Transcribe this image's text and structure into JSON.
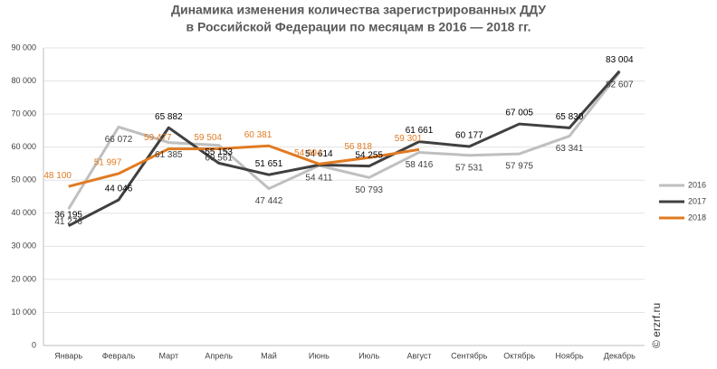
{
  "chart_data": {
    "type": "line",
    "title": "Динамика изменения количества зарегистрированных ДДУ",
    "subtitle": "в Российской Федерации по месяцам в 2016 — 2018 гг.",
    "source": "© erzrf.ru",
    "categories": [
      "Январь",
      "Февраль",
      "Март",
      "Апрель",
      "Май",
      "Июнь",
      "Июль",
      "Август",
      "Сентябрь",
      "Октябрь",
      "Ноябрь",
      "Декабрь"
    ],
    "series": [
      {
        "name": "2016",
        "color": "#bfbfbf",
        "label_color": "#404040",
        "values": [
          41276,
          66072,
          61385,
          60561,
          47442,
          54411,
          50793,
          58416,
          57531,
          57975,
          63341,
          82607
        ],
        "value_labels": [
          "41 276",
          "66 072",
          "61 385",
          "60 561",
          "47 442",
          "54 411",
          "50 793",
          "58 416",
          "57 531",
          "57 975",
          "63 341",
          "82 607"
        ]
      },
      {
        "name": "2017",
        "color": "#404040",
        "label_color": "#000000",
        "values": [
          36195,
          44046,
          65882,
          55153,
          51651,
          54614,
          54255,
          61661,
          60177,
          67005,
          65830,
          83004
        ],
        "value_labels": [
          "36 195",
          "44 046",
          "65 882",
          "55 153",
          "51 651",
          "54 614",
          "54 255",
          "61 661",
          "60 177",
          "67 005",
          "65 830",
          "83 004"
        ]
      },
      {
        "name": "2018",
        "color": "#e07b22",
        "label_color": "#e07b22",
        "values": [
          48100,
          51997,
          59477,
          59504,
          60381,
          54894,
          56818,
          59301,
          null,
          null,
          null,
          null
        ],
        "value_labels": [
          "48 100",
          "51 997",
          "59 477",
          "59 504",
          "60 381",
          "54 894",
          "56 818",
          "59 301",
          null,
          null,
          null,
          null
        ]
      }
    ],
    "ylim": [
      0,
      90000
    ],
    "yticks": [
      0,
      {
        "value": 10000,
        "label": "10 000"
      },
      {
        "value": 20000,
        "label": "20 000"
      },
      {
        "value": 30000,
        "label": "30 000"
      },
      {
        "value": 40000,
        "label": "40 000"
      },
      {
        "value": 50000,
        "label": "50 000"
      },
      {
        "value": 60000,
        "label": "60 000"
      },
      {
        "value": 70000,
        "label": "70 000"
      },
      {
        "value": 80000,
        "label": "80 000"
      },
      {
        "value": 90000,
        "label": "90 000"
      }
    ],
    "grid": true,
    "legend": "right"
  }
}
